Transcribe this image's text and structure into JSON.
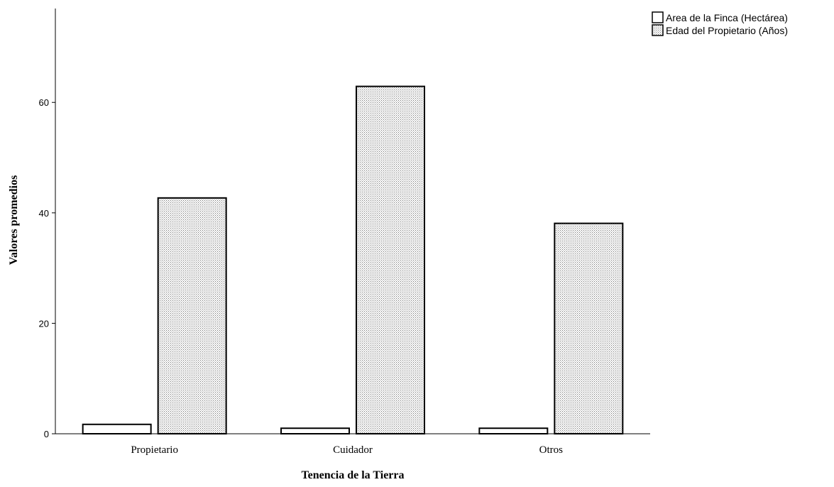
{
  "chart_data": {
    "type": "bar",
    "categories": [
      "Propietario",
      "Cuidador",
      "Otros"
    ],
    "series": [
      {
        "name": "Area de la Finca (Hectárea)",
        "values": [
          1.7,
          1.0,
          1.0
        ],
        "fill": "#ffffff"
      },
      {
        "name": "Edad del Propietario (Años)",
        "values": [
          42.7,
          62.9,
          38.1
        ],
        "fill": "dotted"
      }
    ],
    "title": "",
    "xlabel": "Tenencia de la Tierra",
    "ylabel": "Valores promedios",
    "ylim": [
      0,
      77
    ],
    "yticks": [
      0,
      20,
      40,
      60
    ],
    "grid": false,
    "legend_position": "top-right",
    "colors": {
      "stroke": "#000000",
      "background": "#ffffff",
      "dot": "#7a7a7a"
    }
  }
}
